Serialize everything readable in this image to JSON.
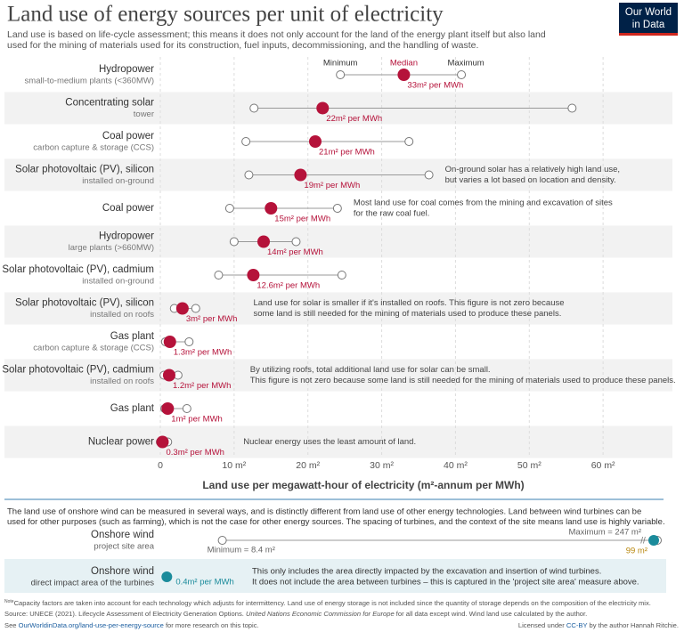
{
  "header": {
    "title": "Land use of energy sources per unit of electricity",
    "subtitle": [
      "Land use is based on life-cycle assessment; this means it does not only account for the land of the energy plant itself but also land",
      "used for the mining of materials used for its construction, fuel inputs, decommissioning, and the handling of waste."
    ],
    "logo": [
      "Our World",
      "in Data"
    ]
  },
  "chart_data": {
    "type": "dot-range",
    "xlabel": "Land use per megawatt-hour of electricity (m²-annum per MWh)",
    "xlim": [
      0,
      70
    ],
    "xticks": [
      0,
      {
        "value": 10,
        "label": "10 m²"
      },
      {
        "value": 20,
        "label": "20 m²"
      },
      {
        "value": 30,
        "label": "30 m²"
      },
      {
        "value": 40,
        "label": "40 m²"
      },
      {
        "value": 50,
        "label": "50 m²"
      },
      {
        "value": 60,
        "label": "60 m²"
      }
    ],
    "grid": true,
    "median_color": "#b5123a",
    "legend_labels": {
      "min": "Minimum",
      "median": "Median",
      "max": "Maximum"
    },
    "rows": [
      {
        "label": "Hydropower",
        "sublabel": "small-to-medium plants (<360MW)",
        "min": 24.4,
        "median": 33,
        "max": 40.8,
        "median_label": "33m² per MWh"
      },
      {
        "label": "Concentrating solar",
        "sublabel": "tower",
        "min": 12.7,
        "median": 22,
        "max": 55.8,
        "median_label": "22m² per MWh"
      },
      {
        "label": "Coal power",
        "sublabel": "carbon capture & storage (CCS)",
        "min": 11.6,
        "median": 21,
        "max": 33.7,
        "median_label": "21m² per MWh"
      },
      {
        "label": "Solar photovoltaic (PV), silicon",
        "sublabel": "installed on-ground",
        "min": 12.0,
        "median": 19,
        "max": 36.4,
        "median_label": "19m² per MWh",
        "note": [
          "On-ground solar has a relatively high land use,",
          "but varies a lot based on location and density."
        ]
      },
      {
        "label": "Coal power",
        "min": 9.4,
        "median": 15,
        "max": 24.0,
        "median_label": "15m² per MWh",
        "note": [
          "Most land use for coal comes from the mining and excavation of sites",
          "for the raw coal fuel."
        ]
      },
      {
        "label": "Hydropower",
        "sublabel": "large plants (>660MW)",
        "min": 10.0,
        "median": 14,
        "max": 18.4,
        "median_label": "14m² per MWh"
      },
      {
        "label": "Solar photovoltaic (PV), cadmium",
        "sublabel": "installed on-ground",
        "min": 7.9,
        "median": 12.6,
        "max": 24.6,
        "median_label": "12.6m² per MWh"
      },
      {
        "label": "Solar photovoltaic (PV), silicon",
        "sublabel": "installed on roofs",
        "min": 1.9,
        "median": 3,
        "max": 4.8,
        "median_label": "3m² per MWh",
        "note": [
          "Land use for solar is smaller if it's installed on roofs. This figure is not zero because",
          "some land is still needed for the mining of materials used to produce these panels."
        ]
      },
      {
        "label": "Gas plant",
        "sublabel": "carbon capture & storage (CCS)",
        "min": 0.7,
        "median": 1.3,
        "max": 3.9,
        "median_label": "1.3m² per MWh"
      },
      {
        "label": "Solar photovoltaic (PV), cadmium",
        "sublabel": "installed on roofs",
        "min": 0.5,
        "median": 1.2,
        "max": 2.4,
        "median_label": "1.2m² per MWh",
        "note": [
          "By utilizing roofs, total additional land use for solar can be small.",
          "This figure is not zero because some land is still needed for the mining of materials used to produce these panels."
        ]
      },
      {
        "label": "Gas plant",
        "min": 0.6,
        "median": 1,
        "max": 3.6,
        "median_label": "1m² per MWh"
      },
      {
        "label": "Nuclear power",
        "min": 0,
        "median": 0.3,
        "max": 1.0,
        "median_label": "0.3m² per MWh",
        "note": [
          "Nuclear energy uses the least amount of land."
        ]
      }
    ]
  },
  "wind": {
    "color": "#1b8b9b",
    "description": [
      "The land use of onshore wind can be measured in several ways, and is distinctly different from land use of other energy technologies. Land between wind turbines can be",
      "used for other purposes (such as farming), which is not the case for other energy sources. The spacing of turbines, and the context of the site means land use is highly variable."
    ],
    "rows": [
      {
        "label": "Onshore wind",
        "sublabel": "project site area",
        "min": 8.4,
        "median": 99,
        "max": 247,
        "min_label": "Minimum = 8.4 m²",
        "median_label": "99 m²",
        "max_label": "Maximum = 247 m²"
      },
      {
        "label": "Onshore wind",
        "sublabel": "direct impact area of the turbines",
        "median": 0.4,
        "median_label": "0.4m² per MWh",
        "note": [
          "This only includes the area directly impacted by the excavation and insertion of wind turbines.",
          "It does not include the area between turbines – this is captured in the 'project site area' measure above."
        ]
      }
    ]
  },
  "footer": {
    "note_prefix": "Note",
    "note": "Capacity factors are taken into account for each technology which adjusts for intermittency. Land use of energy storage is not included since the quantity of storage depends on the composition of the electricity mix.",
    "source": [
      "Source: UNECE (2021). Lifecycle Assessment of Electricity Generation Options. ",
      "United Nations Economic Commission for Europe",
      " for all data except wind. Wind land use calculated by the author."
    ],
    "see": [
      "See ",
      "OurWorldinData.org/land-use-per-energy-source",
      " for more research on this topic."
    ],
    "license": [
      "Licensed under ",
      "CC-BY",
      " by the author Hannah Ritchie."
    ]
  }
}
